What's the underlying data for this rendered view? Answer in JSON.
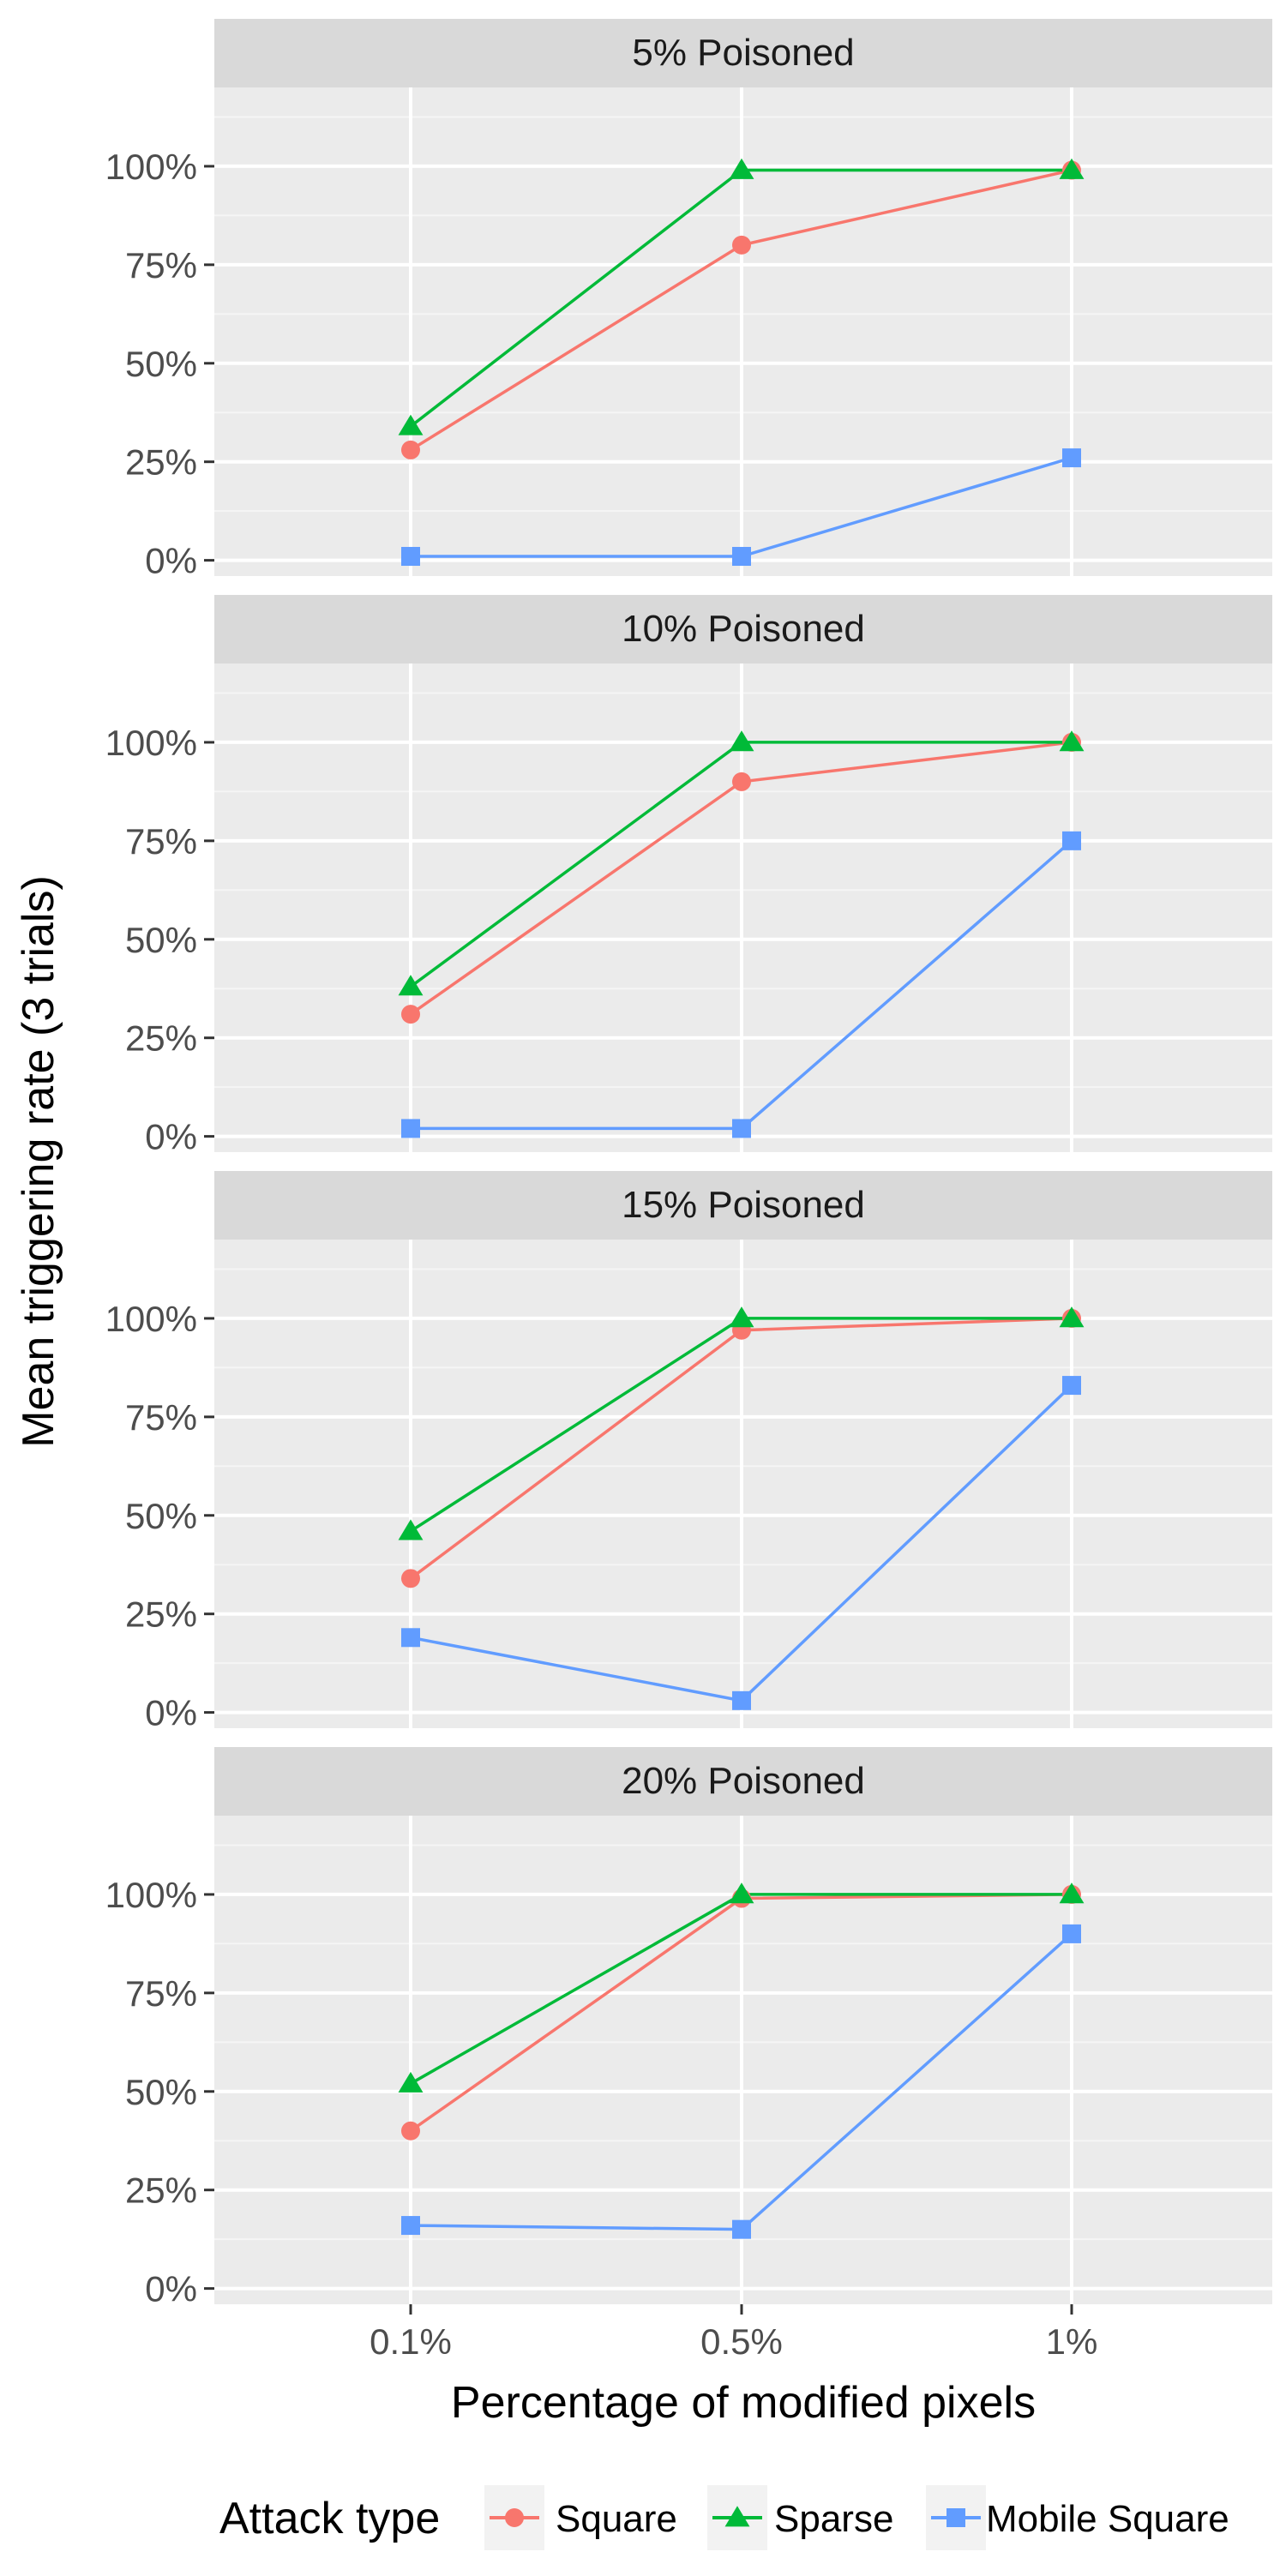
{
  "chart_data": {
    "type": "line",
    "title": "",
    "xlabel": "Percentage of modified pixels",
    "ylabel": "Mean triggering rate (3 trials)",
    "categories": [
      "0.1%",
      "0.5%",
      "1%"
    ],
    "y_ticks": [
      "0%",
      "25%",
      "50%",
      "75%",
      "100%"
    ],
    "ylim": [
      -0.04,
      1.2
    ],
    "grid": true,
    "legend": {
      "title": "Attack type",
      "position": "bottom"
    },
    "series_styles": [
      {
        "name": "Square",
        "color": "#F8766D",
        "marker": "circle"
      },
      {
        "name": "Sparse",
        "color": "#00BA38",
        "marker": "triangle"
      },
      {
        "name": "Mobile Square",
        "color": "#619CFF",
        "marker": "square"
      }
    ],
    "panels": [
      {
        "title": "5% Poisoned",
        "series": [
          {
            "name": "Square",
            "values": [
              0.28,
              0.8,
              0.99
            ]
          },
          {
            "name": "Sparse",
            "values": [
              0.34,
              0.99,
              0.99
            ]
          },
          {
            "name": "Mobile Square",
            "values": [
              0.01,
              0.01,
              0.26
            ]
          }
        ]
      },
      {
        "title": "10% Poisoned",
        "series": [
          {
            "name": "Square",
            "values": [
              0.31,
              0.9,
              1.0
            ]
          },
          {
            "name": "Sparse",
            "values": [
              0.38,
              1.0,
              1.0
            ]
          },
          {
            "name": "Mobile Square",
            "values": [
              0.02,
              0.02,
              0.75
            ]
          }
        ]
      },
      {
        "title": "15% Poisoned",
        "series": [
          {
            "name": "Square",
            "values": [
              0.34,
              0.97,
              1.0
            ]
          },
          {
            "name": "Sparse",
            "values": [
              0.46,
              1.0,
              1.0
            ]
          },
          {
            "name": "Mobile Square",
            "values": [
              0.19,
              0.03,
              0.83
            ]
          }
        ]
      },
      {
        "title": "20% Poisoned",
        "series": [
          {
            "name": "Square",
            "values": [
              0.4,
              0.99,
              1.0
            ]
          },
          {
            "name": "Sparse",
            "values": [
              0.52,
              1.0,
              1.0
            ]
          },
          {
            "name": "Mobile Square",
            "values": [
              0.16,
              0.15,
              0.9
            ]
          }
        ]
      }
    ]
  }
}
